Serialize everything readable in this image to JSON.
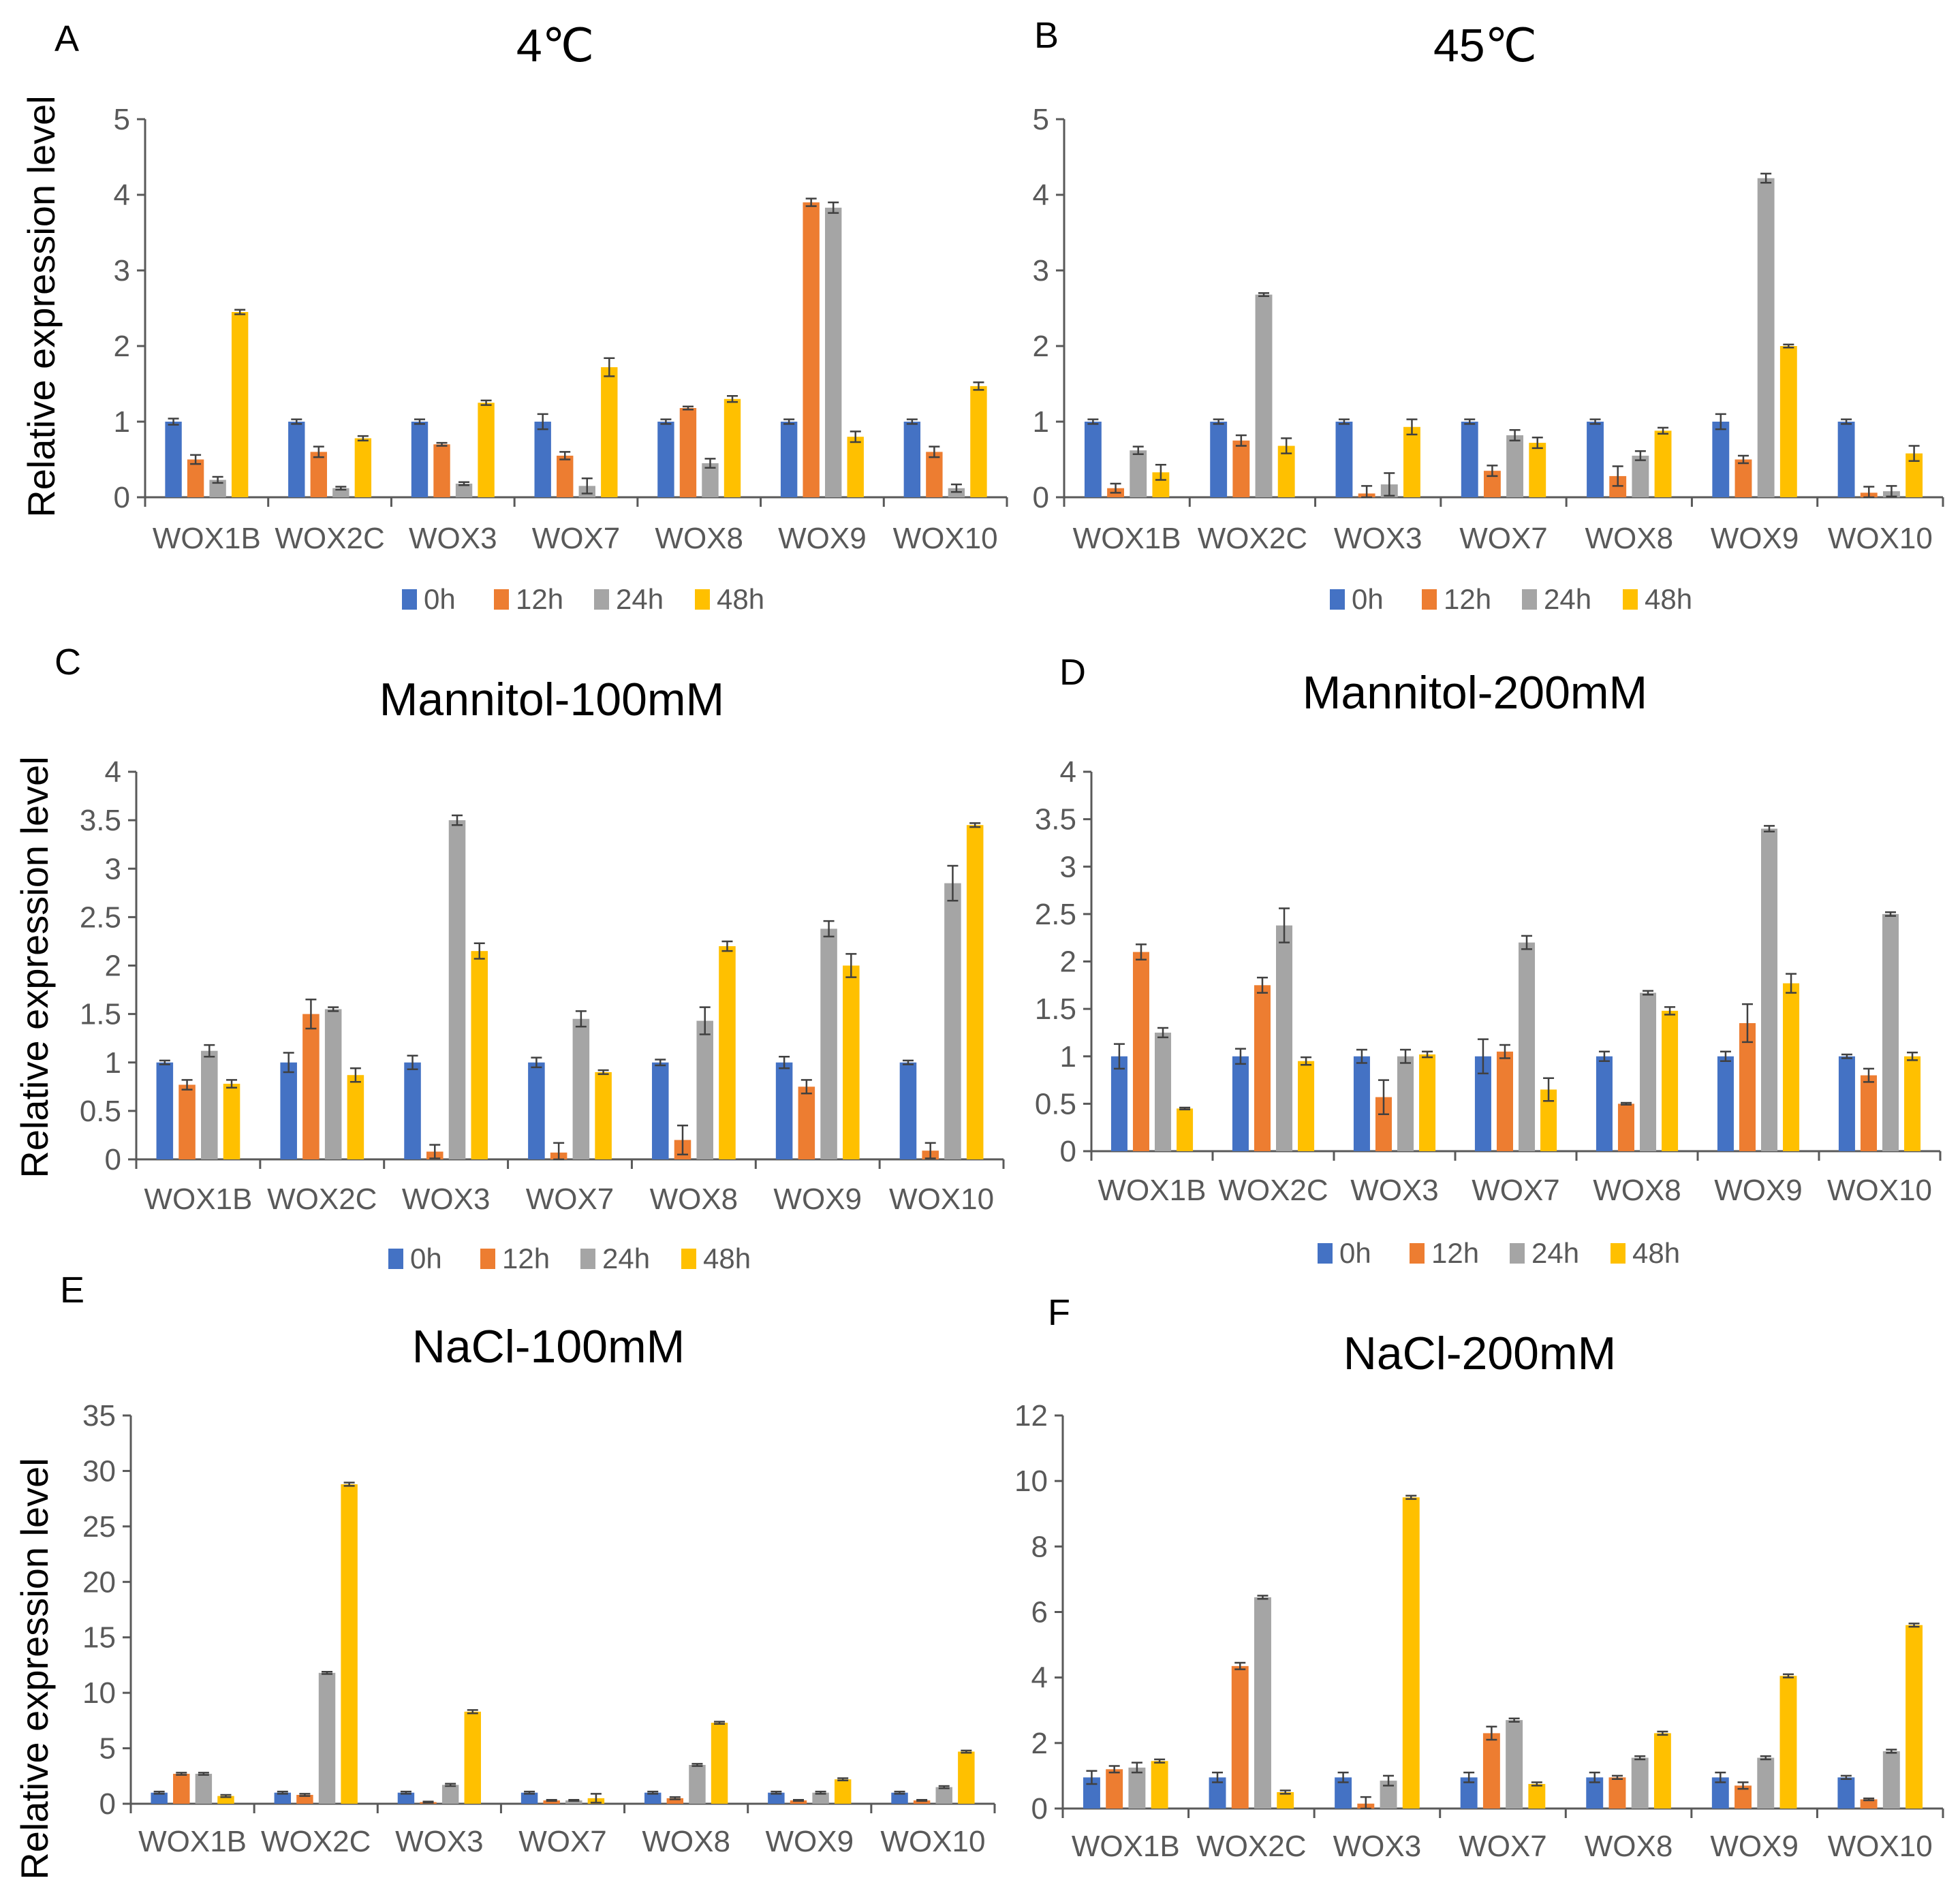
{
  "colors": {
    "0h": "#4472C4",
    "12h": "#ED7D31",
    "24h": "#A5A5A5",
    "48h": "#FFC000",
    "axis": "#595959",
    "err": "#404040"
  },
  "ylabel": "Relative expression level",
  "chart_data": [
    {
      "type": "bar",
      "panel": "A",
      "title": "4℃",
      "categories": [
        "WOX1B",
        "WOX2C",
        "WOX3",
        "WOX7",
        "WOX8",
        "WOX9",
        "WOX10"
      ],
      "ylim": [
        0,
        5
      ],
      "yticks": [
        0,
        1,
        2,
        3,
        4,
        5
      ],
      "ylabel": "Relative expression level",
      "series": [
        {
          "name": "0h",
          "values": [
            1,
            1,
            1,
            1,
            1,
            1,
            1
          ],
          "errors": [
            0.04,
            0.03,
            0.03,
            0.1,
            0.03,
            0.03,
            0.03
          ]
        },
        {
          "name": "12h",
          "values": [
            0.5,
            0.6,
            0.7,
            0.55,
            1.18,
            3.9,
            0.6
          ],
          "errors": [
            0.06,
            0.07,
            0.02,
            0.05,
            0.02,
            0.05,
            0.07
          ]
        },
        {
          "name": "24h",
          "values": [
            0.23,
            0.12,
            0.18,
            0.15,
            0.45,
            3.83,
            0.12
          ],
          "errors": [
            0.04,
            0.02,
            0.02,
            0.1,
            0.06,
            0.07,
            0.05
          ]
        },
        {
          "name": "48h",
          "values": [
            2.45,
            0.78,
            1.25,
            1.72,
            1.3,
            0.8,
            1.47
          ],
          "errors": [
            0.03,
            0.03,
            0.03,
            0.12,
            0.04,
            0.07,
            0.05
          ]
        }
      ],
      "legend": [
        "0h",
        "12h",
        "24h",
        "48h"
      ]
    },
    {
      "type": "bar",
      "panel": "B",
      "title": "45℃",
      "categories": [
        "WOX1B",
        "WOX2C",
        "WOX3",
        "WOX7",
        "WOX8",
        "WOX9",
        "WOX10"
      ],
      "ylim": [
        0,
        5
      ],
      "yticks": [
        0,
        1,
        2,
        3,
        4,
        5
      ],
      "series": [
        {
          "name": "0h",
          "values": [
            1,
            1,
            1,
            1,
            1,
            1,
            1
          ],
          "errors": [
            0.03,
            0.03,
            0.03,
            0.03,
            0.03,
            0.1,
            0.03
          ]
        },
        {
          "name": "12h",
          "values": [
            0.12,
            0.75,
            0.05,
            0.35,
            0.28,
            0.5,
            0.06
          ],
          "errors": [
            0.06,
            0.07,
            0.1,
            0.07,
            0.13,
            0.05,
            0.08
          ]
        },
        {
          "name": "24h",
          "values": [
            0.62,
            2.68,
            0.17,
            0.82,
            0.55,
            4.22,
            0.08
          ],
          "errors": [
            0.05,
            0.02,
            0.15,
            0.07,
            0.06,
            0.06,
            0.07
          ]
        },
        {
          "name": "48h",
          "values": [
            0.33,
            0.68,
            0.93,
            0.72,
            0.88,
            2.0,
            0.58
          ],
          "errors": [
            0.1,
            0.1,
            0.1,
            0.07,
            0.04,
            0.02,
            0.1
          ]
        }
      ],
      "legend": [
        "0h",
        "12h",
        "24h",
        "48h"
      ]
    },
    {
      "type": "bar",
      "panel": "C",
      "title": "Mannitol-100mM",
      "categories": [
        "WOX1B",
        "WOX2C",
        "WOX3",
        "WOX7",
        "WOX8",
        "WOX9",
        "WOX10"
      ],
      "ylim": [
        0,
        4
      ],
      "yticks": [
        0,
        0.5,
        1,
        1.5,
        2,
        2.5,
        3,
        3.5,
        4
      ],
      "ylabel": "Relative expression level",
      "series": [
        {
          "name": "0h",
          "values": [
            1,
            1,
            1,
            1,
            1,
            1,
            1
          ],
          "errors": [
            0.02,
            0.1,
            0.07,
            0.05,
            0.03,
            0.06,
            0.02
          ]
        },
        {
          "name": "12h",
          "values": [
            0.77,
            1.5,
            0.08,
            0.07,
            0.2,
            0.75,
            0.09
          ],
          "errors": [
            0.05,
            0.15,
            0.07,
            0.1,
            0.15,
            0.07,
            0.08
          ]
        },
        {
          "name": "24h",
          "values": [
            1.12,
            1.55,
            3.5,
            1.45,
            1.43,
            2.38,
            2.85
          ],
          "errors": [
            0.06,
            0.02,
            0.05,
            0.08,
            0.14,
            0.08,
            0.18
          ]
        },
        {
          "name": "48h",
          "values": [
            0.78,
            0.87,
            2.15,
            0.9,
            2.2,
            2.0,
            3.45
          ],
          "errors": [
            0.04,
            0.07,
            0.08,
            0.02,
            0.05,
            0.12,
            0.02
          ]
        }
      ],
      "legend": [
        "0h",
        "12h",
        "24h",
        "48h"
      ]
    },
    {
      "type": "bar",
      "panel": "D",
      "title": "Mannitol-200mM",
      "categories": [
        "WOX1B",
        "WOX2C",
        "WOX3",
        "WOX7",
        "WOX8",
        "WOX9",
        "WOX10"
      ],
      "ylim": [
        0,
        4
      ],
      "yticks": [
        0,
        0.5,
        1,
        1.5,
        2,
        2.5,
        3,
        3.5,
        4
      ],
      "series": [
        {
          "name": "0h",
          "values": [
            1,
            1,
            1,
            1,
            1,
            1,
            1
          ],
          "errors": [
            0.13,
            0.08,
            0.07,
            0.18,
            0.05,
            0.05,
            0.02
          ]
        },
        {
          "name": "12h",
          "values": [
            2.1,
            1.75,
            0.57,
            1.05,
            0.5,
            1.35,
            0.8
          ],
          "errors": [
            0.08,
            0.08,
            0.18,
            0.07,
            0.01,
            0.2,
            0.07
          ]
        },
        {
          "name": "24h",
          "values": [
            1.25,
            2.38,
            1.0,
            2.2,
            1.67,
            3.4,
            2.5
          ],
          "errors": [
            0.05,
            0.18,
            0.07,
            0.07,
            0.02,
            0.03,
            0.02
          ]
        },
        {
          "name": "48h",
          "values": [
            0.45,
            0.95,
            1.02,
            0.65,
            1.48,
            1.77,
            1.0
          ],
          "errors": [
            0.01,
            0.04,
            0.03,
            0.12,
            0.04,
            0.1,
            0.04
          ]
        }
      ],
      "legend": [
        "0h",
        "12h",
        "24h",
        "48h"
      ]
    },
    {
      "type": "bar",
      "panel": "E",
      "title": "NaCl-100mM",
      "categories": [
        "WOX1B",
        "WOX2C",
        "WOX3",
        "WOX7",
        "WOX8",
        "WOX9",
        "WOX10"
      ],
      "ylim": [
        0,
        35
      ],
      "yticks": [
        0,
        5,
        10,
        15,
        20,
        25,
        30,
        35
      ],
      "ylabel": "Relative expression level",
      "series": [
        {
          "name": "0h",
          "values": [
            1,
            1,
            1,
            1,
            1,
            1,
            1
          ],
          "errors": [
            0.1,
            0.1,
            0.1,
            0.1,
            0.1,
            0.1,
            0.1
          ]
        },
        {
          "name": "12h",
          "values": [
            2.7,
            0.8,
            0.15,
            0.3,
            0.5,
            0.3,
            0.3
          ],
          "errors": [
            0.1,
            0.1,
            0.05,
            0.05,
            0.1,
            0.05,
            0.05
          ]
        },
        {
          "name": "24h",
          "values": [
            2.7,
            11.8,
            1.7,
            0.3,
            3.5,
            1.0,
            1.5
          ],
          "errors": [
            0.1,
            0.1,
            0.1,
            0.05,
            0.1,
            0.1,
            0.1
          ]
        },
        {
          "name": "48h",
          "values": [
            0.7,
            28.8,
            8.3,
            0.5,
            7.3,
            2.2,
            4.7
          ],
          "errors": [
            0.1,
            0.15,
            0.15,
            0.4,
            0.1,
            0.1,
            0.1
          ]
        }
      ]
    },
    {
      "type": "bar",
      "panel": "F",
      "title": "NaCl-200mM",
      "categories": [
        "WOX1B",
        "WOX2C",
        "WOX3",
        "WOX7",
        "WOX8",
        "WOX9",
        "WOX10"
      ],
      "ylim": [
        0,
        12
      ],
      "yticks": [
        0,
        2,
        4,
        6,
        8,
        10,
        12
      ],
      "series": [
        {
          "name": "0h",
          "values": [
            0.95,
            0.95,
            0.95,
            0.95,
            0.95,
            0.95,
            0.95
          ],
          "errors": [
            0.2,
            0.15,
            0.15,
            0.15,
            0.15,
            0.15,
            0.05
          ]
        },
        {
          "name": "12h",
          "values": [
            1.2,
            4.35,
            0.15,
            2.3,
            0.95,
            0.7,
            0.28
          ],
          "errors": [
            0.1,
            0.1,
            0.2,
            0.2,
            0.05,
            0.1,
            0.03
          ]
        },
        {
          "name": "24h",
          "values": [
            1.25,
            6.45,
            0.85,
            2.7,
            1.55,
            1.55,
            1.75
          ],
          "errors": [
            0.15,
            0.05,
            0.15,
            0.05,
            0.05,
            0.05,
            0.05
          ]
        },
        {
          "name": "48h",
          "values": [
            1.45,
            0.5,
            9.5,
            0.75,
            2.3,
            4.05,
            5.6
          ],
          "errors": [
            0.05,
            0.05,
            0.05,
            0.05,
            0.05,
            0.05,
            0.05
          ]
        }
      ]
    }
  ]
}
